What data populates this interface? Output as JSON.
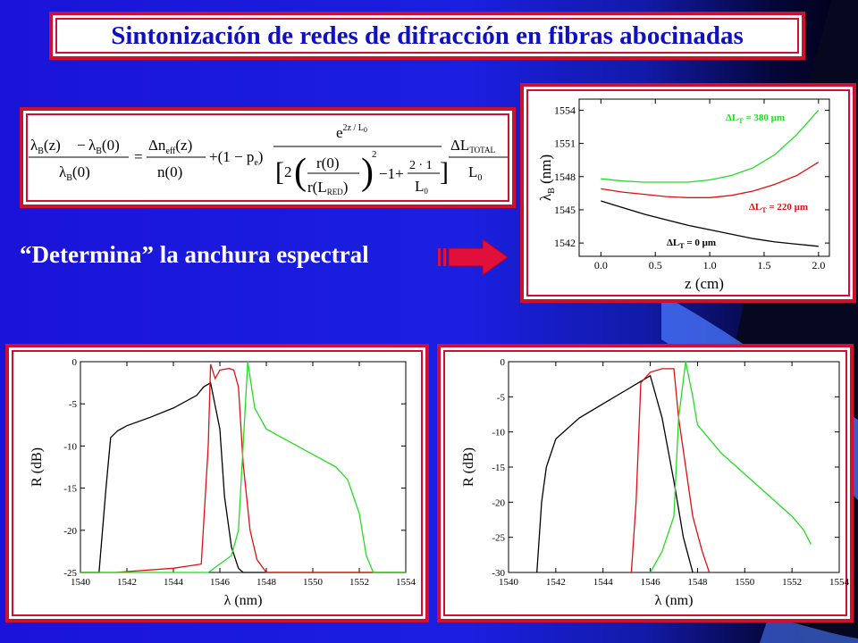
{
  "title": "Sintonización de redes de difracción en fibras abocinadas",
  "formula": {
    "lhs_num_a": "λ",
    "lhs_num_sub_a": "B",
    "lhs_num_arg_a": "(z)",
    "minus": "−",
    "lhs_num_b": "λ",
    "lhs_num_sub_b": "B",
    "lhs_num_arg_b": "(0)",
    "lhs_den": "λ",
    "lhs_den_sub": "B",
    "lhs_den_arg": "(0)",
    "equals": "=",
    "t1_num": "Δn",
    "t1_num_sub": "eff",
    "t1_num_arg": "(z)",
    "t1_den": "n(0)",
    "plus1": "+(1 − p",
    "plus1_sub": "e",
    "plus1_close": ")",
    "exp_base": "e",
    "exp_power": "2z / L",
    "exp_power_sub": "0",
    "d_two": "2",
    "d_r0": "r(0)",
    "d_rL": "r(L",
    "d_rL_sub": "RED",
    "d_rL_close": ")",
    "d_sq": "2",
    "d_minus1": "−1+",
    "d_frac_num": "2 · 1",
    "d_frac_den": "L",
    "d_frac_den_sub": "0",
    "r_num": "ΔL",
    "r_num_sub": "TOTAL",
    "r_den": "L",
    "r_den_sub": "0"
  },
  "determina_text": "“Determina” la anchura espectral",
  "chart_data": [
    {
      "type": "line",
      "xlabel": "z (cm)",
      "ylabel": "λ",
      "ylabel_sub": "B",
      "ylabel_unit": "(nm)",
      "xlim": [
        -0.2,
        2.1
      ],
      "ylim": [
        1540.8,
        1555
      ],
      "xticks": [
        0.0,
        0.5,
        1.0,
        1.5,
        2.0
      ],
      "xtick_labels": [
        "0.0",
        "0.5",
        "1.0",
        "1.5",
        "2.0"
      ],
      "yticks": [
        1542,
        1545,
        1548,
        1551,
        1554
      ],
      "ytick_labels": [
        "1542",
        "1545",
        "1548",
        "1551",
        "1554"
      ],
      "series": [
        {
          "name": "ΔL",
          "name_sub": "T",
          "name_rest": "= 380 μm",
          "color": "#22dd22",
          "x": [
            0,
            0.2,
            0.4,
            0.6,
            0.8,
            1.0,
            1.2,
            1.4,
            1.6,
            1.8,
            2.0
          ],
          "y": [
            1547.8,
            1547.6,
            1547.5,
            1547.5,
            1547.5,
            1547.7,
            1548.1,
            1548.8,
            1550.0,
            1551.8,
            1554.0
          ]
        },
        {
          "name": "ΔL",
          "name_sub": "T",
          "name_rest": "= 220 μm",
          "color": "#dd1111",
          "x": [
            0,
            0.2,
            0.4,
            0.6,
            0.8,
            1.0,
            1.2,
            1.4,
            1.6,
            1.8,
            2.0
          ],
          "y": [
            1546.9,
            1546.6,
            1546.4,
            1546.2,
            1546.1,
            1546.1,
            1546.3,
            1546.7,
            1547.3,
            1548.1,
            1549.3
          ]
        },
        {
          "name": "ΔL",
          "name_sub": "T",
          "name_rest": "= 0 μm",
          "color": "#000000",
          "x": [
            0,
            0.2,
            0.4,
            0.6,
            0.8,
            1.0,
            1.2,
            1.4,
            1.6,
            1.8,
            2.0
          ],
          "y": [
            1545.8,
            1545.2,
            1544.6,
            1544.1,
            1543.6,
            1543.2,
            1542.8,
            1542.4,
            1542.1,
            1541.9,
            1541.7
          ]
        }
      ]
    },
    {
      "type": "line",
      "xlabel": "λ (nm)",
      "ylabel": "R (dB)",
      "xlim": [
        1540,
        1554
      ],
      "ylim": [
        -25,
        0
      ],
      "xticks": [
        1540,
        1542,
        1544,
        1546,
        1548,
        1550,
        1552,
        1554
      ],
      "xtick_labels": [
        "1540",
        "1542",
        "1544",
        "1546",
        "1548",
        "1550",
        "1552",
        "1554"
      ],
      "yticks": [
        0,
        -5,
        -10,
        -15,
        -20,
        -25
      ],
      "ytick_labels": [
        "0",
        "-5",
        "-10",
        "-15",
        "-20",
        "-25"
      ],
      "series": [
        {
          "color": "#000000",
          "x": [
            1540.0,
            1540.8,
            1541.1,
            1541.3,
            1541.6,
            1542.0,
            1543.0,
            1544.0,
            1545.0,
            1545.3,
            1545.6,
            1546.0,
            1546.2,
            1546.5,
            1546.8,
            1547.0,
            1547.2,
            1548.0,
            1554.0
          ],
          "y": [
            -25,
            -25,
            -15,
            -9,
            -8.2,
            -7.6,
            -6.6,
            -5.5,
            -4.0,
            -3.0,
            -2.5,
            -8.0,
            -16.0,
            -22.0,
            -24.5,
            -25,
            -25,
            -25,
            -25
          ]
        },
        {
          "color": "#dd1111",
          "x": [
            1540.0,
            1541.5,
            1544.0,
            1545.2,
            1545.5,
            1545.6,
            1545.8,
            1546.0,
            1546.4,
            1546.6,
            1546.8,
            1547.0,
            1547.3,
            1547.6,
            1548.0,
            1554.0
          ],
          "y": [
            -25,
            -25,
            -24.5,
            -24.0,
            -10.0,
            -0.3,
            -2.0,
            -1.0,
            -0.8,
            -1.0,
            -3.0,
            -12.0,
            -20.0,
            -23.5,
            -25,
            -25
          ]
        },
        {
          "color": "#22dd22",
          "x": [
            1540.0,
            1545.5,
            1546.5,
            1546.8,
            1547.0,
            1547.2,
            1547.5,
            1548.0,
            1549.0,
            1550.0,
            1551.0,
            1551.5,
            1552.0,
            1552.3,
            1552.6,
            1554.0
          ],
          "y": [
            -25,
            -25,
            -23.0,
            -20.0,
            -10.0,
            0.0,
            -5.5,
            -8.0,
            -9.5,
            -11.0,
            -12.5,
            -14.0,
            -18.0,
            -23.0,
            -25,
            -25
          ]
        }
      ]
    },
    {
      "type": "line",
      "xlabel": "λ (nm)",
      "ylabel": "R (dB)",
      "xlim": [
        1540,
        1554
      ],
      "ylim": [
        -30,
        0
      ],
      "xticks": [
        1540,
        1542,
        1544,
        1546,
        1548,
        1550,
        1552,
        1554
      ],
      "xtick_labels": [
        "1540",
        "1542",
        "1544",
        "1546",
        "1548",
        "1550",
        "1552",
        "1554"
      ],
      "yticks": [
        0,
        -5,
        -10,
        -15,
        -20,
        -25,
        -30
      ],
      "ytick_labels": [
        "0",
        "-5",
        "-10",
        "-15",
        "-20",
        "-25",
        "-30"
      ],
      "series": [
        {
          "color": "#000000",
          "x": [
            1541.2,
            1541.4,
            1541.6,
            1542.0,
            1543.0,
            1544.0,
            1545.0,
            1545.5,
            1546.0,
            1546.5,
            1547.0,
            1547.4,
            1547.8
          ],
          "y": [
            -30,
            -20,
            -15,
            -11,
            -8,
            -6,
            -4,
            -3,
            -2,
            -8,
            -17,
            -25,
            -30
          ]
        },
        {
          "color": "#dd1111",
          "x": [
            1545.2,
            1545.4,
            1545.6,
            1546.0,
            1546.5,
            1547.0,
            1547.2,
            1547.5,
            1547.8,
            1548.2,
            1548.5
          ],
          "y": [
            -30,
            -20,
            -3,
            -1.5,
            -1,
            -1,
            -8,
            -15,
            -22,
            -27,
            -30
          ]
        },
        {
          "color": "#22dd22",
          "x": [
            1546.0,
            1546.5,
            1547.0,
            1547.2,
            1547.5,
            1547.8,
            1548.0,
            1549.0,
            1550.0,
            1551.0,
            1552.0,
            1552.5,
            1552.8
          ],
          "y": [
            -30,
            -27,
            -22,
            -8,
            0,
            -5,
            -9,
            -13,
            -16,
            -19,
            -22,
            -24,
            -26
          ]
        }
      ]
    }
  ]
}
